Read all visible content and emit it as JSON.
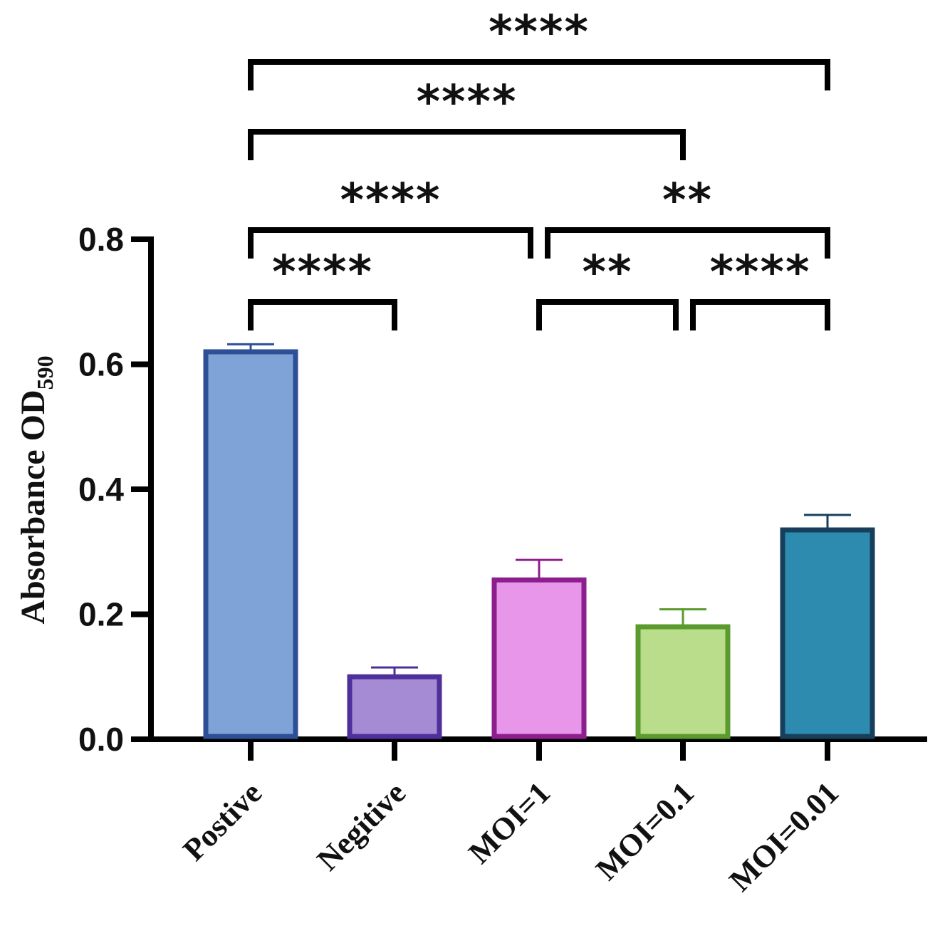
{
  "chart_data": {
    "type": "bar",
    "title": "",
    "xlabel": "",
    "ylabel": "Absorbance OD",
    "ylabel_subscript": "590",
    "ylim": [
      0,
      0.8
    ],
    "yticks": [
      "0.0",
      "0.2",
      "0.4",
      "0.6",
      "0.8"
    ],
    "ytick_values": [
      0,
      0.2,
      0.4,
      0.6,
      0.8
    ],
    "categories": [
      "Postive",
      "Negitive",
      "MOI=1",
      "MOI=0.1",
      "MOI=0.01"
    ],
    "values": [
      0.62,
      0.1,
      0.255,
      0.18,
      0.335
    ],
    "error_upper": [
      0.012,
      0.015,
      0.032,
      0.028,
      0.024
    ],
    "fill_colors": [
      "#7fa3d7",
      "#a48bd4",
      "#e896ea",
      "#badd8c",
      "#2d8bb0"
    ],
    "edge_colors": [
      "#2c4f96",
      "#4f2f9b",
      "#8d1e8e",
      "#5b9a2c",
      "#173f5c"
    ],
    "grid": false,
    "legend": "none",
    "significance": [
      {
        "from": 0,
        "to": 1,
        "label": "****",
        "level": 1
      },
      {
        "from": 2,
        "to": 3,
        "label": "**",
        "level": 1
      },
      {
        "from": 3,
        "to": 4,
        "label": "****",
        "level": 1
      },
      {
        "from": 0,
        "to": 2,
        "label": "****",
        "level": 2
      },
      {
        "from": 2,
        "to": 4,
        "label": "**",
        "level": 2
      },
      {
        "from": 0,
        "to": 3,
        "label": "****",
        "level": 3
      },
      {
        "from": 0,
        "to": 4,
        "label": "****",
        "level": 4
      }
    ]
  }
}
